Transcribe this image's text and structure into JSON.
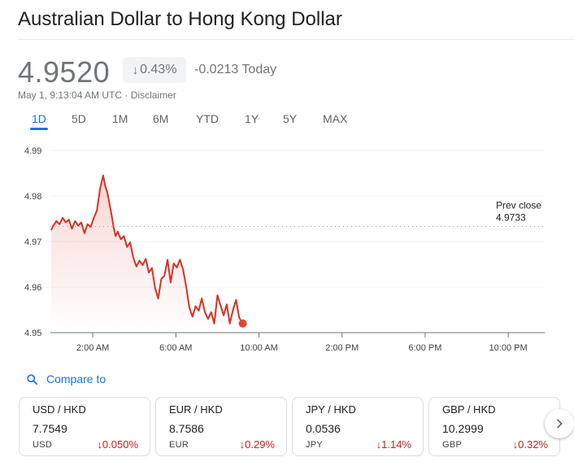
{
  "header": {
    "title": "Australian Dollar to Hong Kong Dollar"
  },
  "quote": {
    "price": "4.9520",
    "change_percent": "0.43%",
    "change_abs": "-0.0213 Today",
    "timestamp": "May 1, 9:13:04 AM UTC",
    "separator": " · ",
    "disclaimer": "Disclaimer"
  },
  "tabs": [
    {
      "label": "1D",
      "active": true
    },
    {
      "label": "5D"
    },
    {
      "label": "1M"
    },
    {
      "label": "6M"
    },
    {
      "label": "YTD"
    },
    {
      "label": "1Y"
    },
    {
      "label": "5Y"
    },
    {
      "label": "MAX"
    }
  ],
  "chart_data": {
    "type": "line",
    "ylim": [
      4.95,
      4.99
    ],
    "y_ticks": [
      "4.99",
      "4.98",
      "4.97",
      "4.96",
      "4.95"
    ],
    "x_ticks": [
      "2:00 AM",
      "6:00 AM",
      "10:00 AM",
      "2:00 PM",
      "6:00 PM",
      "10:00 PM"
    ],
    "prev_close_label": "Prev close",
    "prev_close": 4.9733,
    "prev_close_text": "4.9733",
    "series": [
      {
        "time_hours": [
          0.0,
          0.1,
          0.25,
          0.4,
          0.55,
          0.7,
          0.85,
          1.0,
          1.15,
          1.3,
          1.45,
          1.6,
          1.75,
          1.9,
          2.05,
          2.2,
          2.35,
          2.5,
          2.6,
          2.7,
          2.8,
          2.9,
          3.0,
          3.1,
          3.2,
          3.35,
          3.5,
          3.65,
          3.8,
          3.95,
          4.1,
          4.25,
          4.4,
          4.55,
          4.7,
          4.85,
          5.0,
          5.15,
          5.3,
          5.45,
          5.6,
          5.75,
          5.9,
          6.05,
          6.2,
          6.35,
          6.5,
          6.65,
          6.8,
          6.95,
          7.1,
          7.25,
          7.4,
          7.55,
          7.7,
          7.85,
          8.0,
          8.15,
          8.3,
          8.45,
          8.6,
          8.75,
          8.9,
          9.05,
          9.22
        ],
        "values": [
          4.9725,
          4.9735,
          4.9745,
          4.9738,
          4.9752,
          4.9742,
          4.9748,
          4.9728,
          4.9745,
          4.9735,
          4.9742,
          4.9718,
          4.9738,
          4.9732,
          4.9752,
          4.9768,
          4.9815,
          4.9845,
          4.9822,
          4.9808,
          4.9785,
          4.976,
          4.9732,
          4.9712,
          4.9722,
          4.9705,
          4.9712,
          4.9688,
          4.9698,
          4.9665,
          4.9645,
          4.9658,
          4.9648,
          4.9662,
          4.9632,
          4.9642,
          4.9598,
          4.9575,
          4.9618,
          4.9625,
          4.966,
          4.961,
          4.9652,
          4.9643,
          4.966,
          4.9638,
          4.96,
          4.9555,
          4.9535,
          4.9558,
          4.9548,
          4.9575,
          4.9545,
          4.953,
          4.9545,
          4.952,
          4.9582,
          4.956,
          4.9538,
          4.9562,
          4.952,
          4.955,
          4.9572,
          4.9533,
          4.952
        ]
      }
    ],
    "x_range_hours": [
      0,
      24
    ],
    "grid": true
  },
  "compare": {
    "label": "Compare to"
  },
  "cards": [
    {
      "pair": "USD / HKD",
      "rate": "7.7549",
      "base": "USD",
      "change": "0.050%"
    },
    {
      "pair": "EUR / HKD",
      "rate": "8.7586",
      "base": "EUR",
      "change": "0.29%"
    },
    {
      "pair": "JPY / HKD",
      "rate": "0.0536",
      "base": "JPY",
      "change": "1.14%"
    },
    {
      "pair": "GBP / HKD",
      "rate": "10.2999",
      "base": "GBP",
      "change": "0.32%"
    }
  ],
  "icons": {
    "down_arrow": "arrow-down-icon",
    "search": "search-icon",
    "next": "chevron-right-icon"
  },
  "colors": {
    "accent": "#1a73e8",
    "negative": "#d93025",
    "negative_text": "#c5221f",
    "muted": "#70757a"
  }
}
